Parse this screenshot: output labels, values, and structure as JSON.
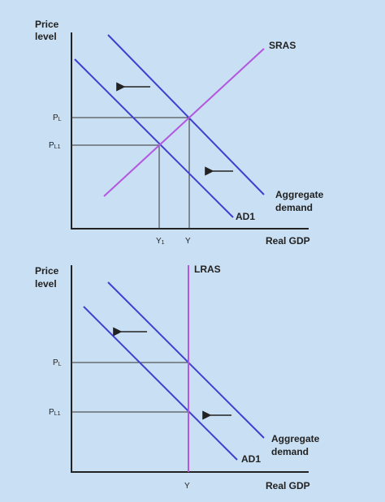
{
  "colors": {
    "background": "#c9dff3",
    "demand_line": "#3f3fd0",
    "supply_line": "#b356e0",
    "axis": "#222222",
    "guide": "#333333"
  },
  "top": {
    "y_axis_label_1": "Price",
    "y_axis_label_2": "level",
    "x_axis_label": "Real GDP",
    "sras_label": "SRAS",
    "ad_label_1": "Aggregate",
    "ad_label_2": "demand",
    "ad1_label": "AD1",
    "price_high": "P",
    "price_high_sub": "L",
    "price_low": "P",
    "price_low_sub": "L1",
    "output_low": "Y",
    "output_low_sub": "1",
    "output_high": "Y",
    "shift_arrows": "left-arrow"
  },
  "bottom": {
    "y_axis_label_1": "Price",
    "y_axis_label_2": "level",
    "x_axis_label": "Real GDP",
    "lras_label": "LRAS",
    "ad_label_1": "Aggregate",
    "ad_label_2": "demand",
    "ad1_label": "AD1",
    "price_high": "P",
    "price_high_sub": "L",
    "price_low": "P",
    "price_low_sub": "L1",
    "output": "Y",
    "shift_arrows": "left-arrow"
  }
}
